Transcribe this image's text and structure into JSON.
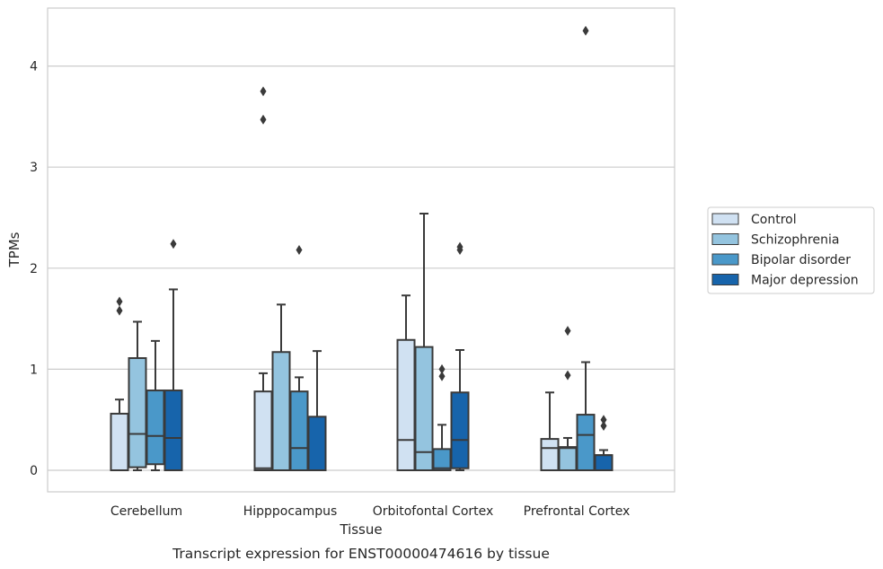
{
  "chart_data": {
    "type": "box",
    "caption": "Transcript expression for ENST00000474616 by tissue",
    "xlabel": "Tissue",
    "ylabel": "TPMs",
    "ylim": [
      -0.21,
      4.57
    ],
    "yticks": [
      0,
      1,
      2,
      3,
      4
    ],
    "grid": "y",
    "legend_position": "right",
    "categories": [
      "Cerebellum",
      "Hipppocampus",
      "Orbitofontal Cortex",
      "Prefrontal Cortex"
    ],
    "series": [
      {
        "name": "Control",
        "color": "#d0e1f2",
        "boxes": [
          {
            "whislo": 0,
            "q1": 0,
            "med": 0,
            "q3": 0.56,
            "whishi": 0.7,
            "fliers": [
              1.58,
              1.67
            ]
          },
          {
            "whislo": 0,
            "q1": 0,
            "med": 0.02,
            "q3": 0.78,
            "whishi": 0.96,
            "fliers": [
              3.47,
              3.75
            ]
          },
          {
            "whislo": 0,
            "q1": 0,
            "med": 0.3,
            "q3": 1.29,
            "whishi": 1.73,
            "fliers": []
          },
          {
            "whislo": 0,
            "q1": 0,
            "med": 0.22,
            "q3": 0.31,
            "whishi": 0.77,
            "fliers": []
          }
        ]
      },
      {
        "name": "Schizophrenia",
        "color": "#94c4df",
        "boxes": [
          {
            "whislo": 0,
            "q1": 0.03,
            "med": 0.36,
            "q3": 1.11,
            "whishi": 1.47,
            "fliers": []
          },
          {
            "whislo": 0,
            "q1": 0,
            "med": 0,
            "q3": 1.17,
            "whishi": 1.64,
            "fliers": []
          },
          {
            "whislo": 0,
            "q1": 0,
            "med": 0.18,
            "q3": 1.22,
            "whishi": 2.54,
            "fliers": []
          },
          {
            "whislo": 0,
            "q1": 0,
            "med": 0.22,
            "q3": 0.23,
            "whishi": 0.32,
            "fliers": [
              0.94,
              1.38
            ]
          }
        ]
      },
      {
        "name": "Bipolar disorder",
        "color": "#4a98c9",
        "boxes": [
          {
            "whislo": 0,
            "q1": 0.06,
            "med": 0.34,
            "q3": 0.79,
            "whishi": 1.28,
            "fliers": []
          },
          {
            "whislo": 0,
            "q1": 0,
            "med": 0.22,
            "q3": 0.78,
            "whishi": 0.92,
            "fliers": [
              2.18
            ]
          },
          {
            "whislo": 0,
            "q1": 0,
            "med": 0.02,
            "q3": 0.21,
            "whishi": 0.45,
            "fliers": [
              0.93,
              1.0
            ]
          },
          {
            "whislo": 0,
            "q1": 0,
            "med": 0.35,
            "q3": 0.55,
            "whishi": 1.07,
            "fliers": [
              4.35
            ]
          }
        ]
      },
      {
        "name": "Major depression",
        "color": "#1764ab",
        "boxes": [
          {
            "whislo": 0,
            "q1": 0,
            "med": 0.32,
            "q3": 0.79,
            "whishi": 1.79,
            "fliers": [
              2.24
            ]
          },
          {
            "whislo": 0,
            "q1": 0,
            "med": 0,
            "q3": 0.53,
            "whishi": 1.18,
            "fliers": []
          },
          {
            "whislo": 0,
            "q1": 0.02,
            "med": 0.3,
            "q3": 0.77,
            "whishi": 1.19,
            "fliers": [
              2.18,
              2.21
            ]
          },
          {
            "whislo": 0,
            "q1": 0,
            "med": 0.15,
            "q3": 0.15,
            "whishi": 0.2,
            "fliers": [
              0.44,
              0.5
            ]
          }
        ]
      }
    ]
  }
}
